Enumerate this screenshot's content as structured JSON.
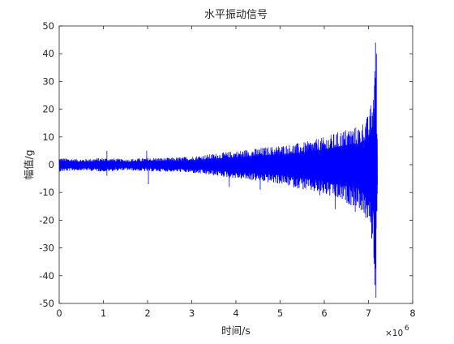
{
  "chart_data": {
    "type": "line",
    "title": "水平振动信号",
    "xlabel": "时间/s",
    "ylabel": "幅值/g",
    "x_exponent_label": "×10",
    "x_exponent_power": "6",
    "xlim": [
      0,
      8
    ],
    "ylim": [
      -50,
      50
    ],
    "x_ticks": [
      0,
      1,
      2,
      3,
      4,
      5,
      6,
      7,
      8
    ],
    "y_ticks": [
      -50,
      -40,
      -30,
      -20,
      -10,
      0,
      10,
      20,
      30,
      40,
      50
    ],
    "grid": false,
    "legend": "none",
    "x_scale_note": "x values in units of 10^6",
    "series": [
      {
        "color": "#0000ff",
        "x_end": 7.2,
        "envelope": {
          "x": [
            0,
            0.5,
            1,
            1.5,
            2,
            2.5,
            3,
            3.5,
            4,
            4.5,
            5,
            5.5,
            6,
            6.5,
            6.8,
            7,
            7.1,
            7.15,
            7.2
          ],
          "upper": [
            2.5,
            2,
            2.5,
            2,
            2.5,
            2.5,
            3,
            4,
            5,
            6,
            7,
            8,
            10,
            13,
            14,
            18,
            25,
            44,
            10
          ],
          "lower": [
            -2.5,
            -2,
            -2.5,
            -2,
            -2.5,
            -2.5,
            -3,
            -4,
            -5,
            -6,
            -7,
            -9,
            -11,
            -14,
            -16,
            -22,
            -30,
            -48,
            -8
          ]
        },
        "spikes": [
          {
            "x": 1.08,
            "y": 5
          },
          {
            "x": 1.08,
            "y": -4
          },
          {
            "x": 1.98,
            "y": 5
          },
          {
            "x": 2.02,
            "y": -7
          },
          {
            "x": 3.85,
            "y": -8
          },
          {
            "x": 4.55,
            "y": -9
          },
          {
            "x": 5.9,
            "y": -11
          },
          {
            "x": 6.25,
            "y": -16
          },
          {
            "x": 6.55,
            "y": 12
          },
          {
            "x": 6.7,
            "y": -17
          },
          {
            "x": 6.95,
            "y": 15
          },
          {
            "x": 7.05,
            "y": -20
          },
          {
            "x": 7.16,
            "y": 44
          },
          {
            "x": 7.17,
            "y": -48
          },
          {
            "x": 7.18,
            "y": 40
          }
        ]
      }
    ]
  }
}
